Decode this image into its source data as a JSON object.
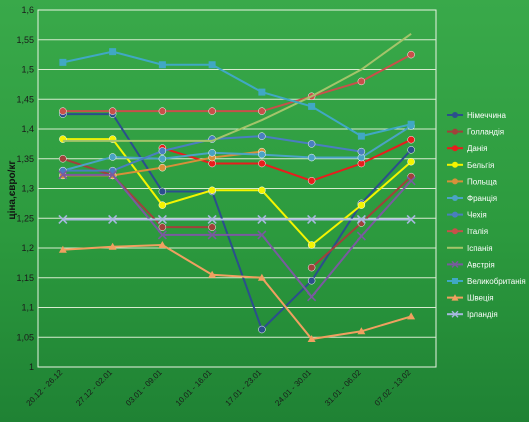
{
  "chart_data": {
    "type": "line",
    "title": "",
    "xlabel": "",
    "ylabel": "ціна,євро/кг",
    "ylim": [
      1,
      1.6
    ],
    "y_ticks": [
      "1",
      "1,05",
      "1,1",
      "1,15",
      "1,2",
      "1,25",
      "1,3",
      "1,35",
      "1,4",
      "1,45",
      "1,5",
      "1,55",
      "1,6"
    ],
    "categories": [
      "20.12 - 26.12",
      "27.12 - 02.01",
      "03.01 - 09.01",
      "10.01 - 16.01",
      "17.01 - 23.01",
      "24.01 - 30.01",
      "31.01 - 06.02",
      "07.02 - 13.02"
    ],
    "grid": "horizontal",
    "legend_position": "right",
    "series": [
      {
        "name": "Німеччина",
        "color": "#2b4f8c",
        "marker": "circle",
        "values": [
          1.425,
          1.425,
          1.295,
          1.295,
          1.063,
          1.145,
          1.275,
          1.365
        ]
      },
      {
        "name": "Голландія",
        "color": "#a0413b",
        "marker": "circle",
        "values": [
          1.35,
          1.322,
          1.235,
          1.235,
          null,
          1.167,
          1.242,
          1.32
        ]
      },
      {
        "name": "Данія",
        "color": "#e81d1d",
        "marker": "circle",
        "values": [
          null,
          null,
          1.368,
          1.342,
          1.342,
          1.313,
          1.342,
          1.382
        ]
      },
      {
        "name": "Бельгія",
        "color": "#f4f400",
        "marker": "circle",
        "values": [
          1.383,
          1.383,
          1.272,
          1.297,
          1.297,
          1.205,
          1.272,
          1.345
        ]
      },
      {
        "name": "Польща",
        "color": "#d8903a",
        "marker": "circle",
        "values": [
          1.322,
          1.322,
          1.335,
          1.352,
          1.362,
          null,
          null,
          null
        ]
      },
      {
        "name": "Франція",
        "color": "#4aa3c4",
        "marker": "circle",
        "values": [
          1.33,
          1.353,
          1.35,
          1.36,
          1.357,
          1.352,
          1.352,
          1.405
        ]
      },
      {
        "name": "Чехія",
        "color": "#4a7ec0",
        "marker": "circle",
        "values": [
          1.33,
          1.33,
          1.363,
          1.383,
          1.388,
          1.375,
          1.362,
          null
        ]
      },
      {
        "name": "Італія",
        "color": "#c8504a",
        "marker": "circle",
        "values": [
          1.43,
          1.43,
          1.43,
          1.43,
          1.43,
          1.455,
          1.48,
          1.525
        ]
      },
      {
        "name": "Іспанія",
        "color": "#a4c46a",
        "marker": "none",
        "values": [
          1.38,
          1.38,
          1.38,
          1.38,
          1.415,
          1.455,
          1.5,
          1.56
        ]
      },
      {
        "name": "Австрія",
        "color": "#7a5aa0",
        "marker": "x",
        "values": [
          1.323,
          1.323,
          1.222,
          1.222,
          1.222,
          1.118,
          1.22,
          1.313
        ]
      },
      {
        "name": "Великобританія",
        "color": "#40a8c4",
        "marker": "square",
        "values": [
          1.512,
          1.53,
          1.508,
          1.508,
          1.462,
          1.438,
          1.388,
          1.408
        ]
      },
      {
        "name": "Швеція",
        "color": "#f0a060",
        "marker": "triangle",
        "values": [
          1.197,
          1.202,
          1.205,
          1.155,
          1.15,
          1.047,
          1.06,
          1.085
        ]
      },
      {
        "name": "Ірландія",
        "color": "#a8b8e0",
        "marker": "x",
        "values": [
          1.248,
          1.248,
          1.248,
          1.248,
          1.248,
          1.248,
          1.248,
          1.248
        ]
      }
    ]
  }
}
